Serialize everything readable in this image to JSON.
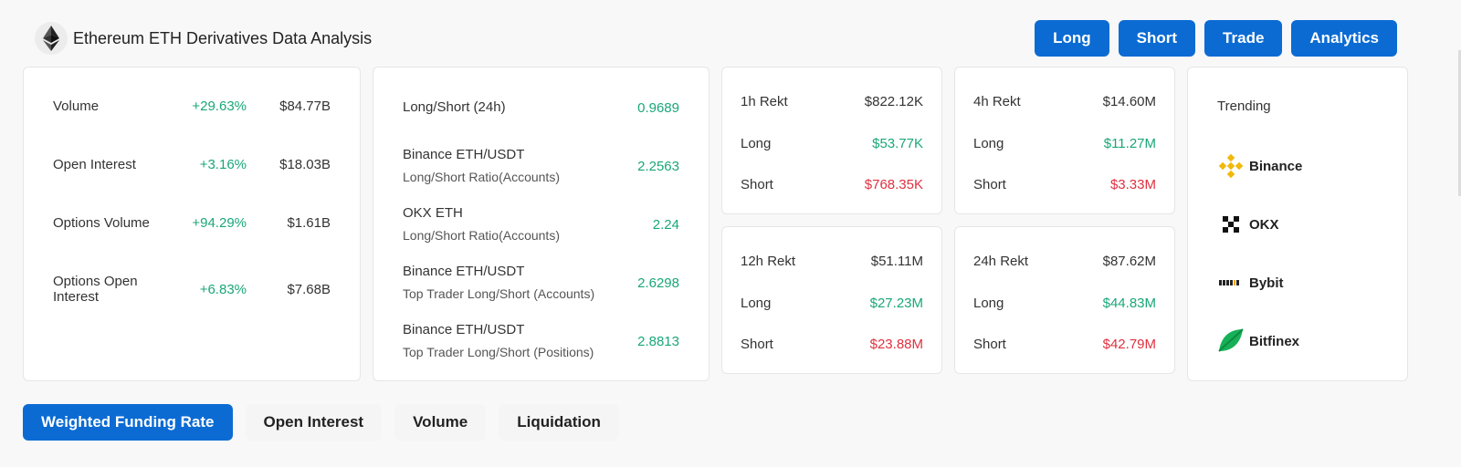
{
  "header": {
    "title": "Ethereum ETH Derivatives Data Analysis",
    "logo_icon": "ethereum-icon"
  },
  "top_buttons": [
    "Long",
    "Short",
    "Trade",
    "Analytics"
  ],
  "market": [
    {
      "label": "Volume",
      "change": "+29.63%",
      "value": "$84.77B"
    },
    {
      "label": "Open Interest",
      "change": "+3.16%",
      "value": "$18.03B"
    },
    {
      "label": "Options Volume",
      "change": "+94.29%",
      "value": "$1.61B"
    },
    {
      "label": "Options Open Interest",
      "change": "+6.83%",
      "value": "$7.68B"
    }
  ],
  "long_short": [
    {
      "label": "Long/Short (24h)",
      "sub": "",
      "value": "0.9689"
    },
    {
      "label": "Binance ETH/USDT",
      "sub": "Long/Short Ratio(Accounts)",
      "value": "2.2563"
    },
    {
      "label": "OKX ETH",
      "sub": "Long/Short Ratio(Accounts)",
      "value": "2.24"
    },
    {
      "label": "Binance ETH/USDT",
      "sub": "Top Trader Long/Short (Accounts)",
      "value": "2.6298"
    },
    {
      "label": "Binance ETH/USDT",
      "sub": "Top Trader Long/Short (Positions)",
      "value": "2.8813"
    }
  ],
  "rekt": [
    {
      "title": "1h Rekt",
      "total": "$822.12K",
      "long_label": "Long",
      "long": "$53.77K",
      "short_label": "Short",
      "short": "$768.35K"
    },
    {
      "title": "4h Rekt",
      "total": "$14.60M",
      "long_label": "Long",
      "long": "$11.27M",
      "short_label": "Short",
      "short": "$3.33M"
    },
    {
      "title": "12h Rekt",
      "total": "$51.11M",
      "long_label": "Long",
      "long": "$27.23M",
      "short_label": "Short",
      "short": "$23.88M"
    },
    {
      "title": "24h Rekt",
      "total": "$87.62M",
      "long_label": "Long",
      "long": "$44.83M",
      "short_label": "Short",
      "short": "$42.79M"
    }
  ],
  "trending": {
    "title": "Trending",
    "items": [
      {
        "name": "Binance",
        "icon": "binance-icon"
      },
      {
        "name": "OKX",
        "icon": "okx-icon"
      },
      {
        "name": "Bybit",
        "icon": "bybit-icon"
      },
      {
        "name": "Bitfinex",
        "icon": "bitfinex-icon"
      }
    ]
  },
  "tabs": [
    "Weighted Funding Rate",
    "Open Interest",
    "Volume",
    "Liquidation"
  ],
  "colors": {
    "accent": "#0b6bd3",
    "positive": "#19a779",
    "negative": "#e0303f"
  }
}
